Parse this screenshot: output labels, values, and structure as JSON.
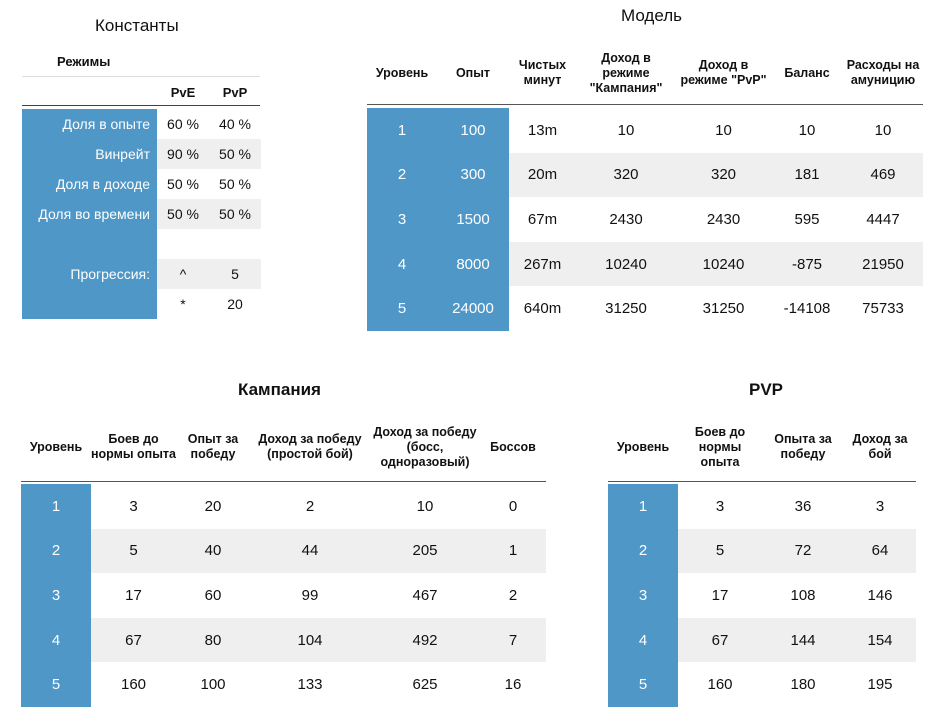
{
  "constants": {
    "title": "Константы",
    "modes_title": "Режимы",
    "columns": [
      "PvE",
      "PvP"
    ],
    "rows": [
      {
        "label": "Доля в опыте",
        "pve": "60 %",
        "pvp": "40 %"
      },
      {
        "label": "Винрейт",
        "pve": "90 %",
        "pvp": "50 %"
      },
      {
        "label": "Доля в доходе",
        "pve": "50 %",
        "pvp": "50 %"
      },
      {
        "label": "Доля во времени",
        "pve": "50 %",
        "pvp": "50 %"
      }
    ],
    "progression_label": "Прогрессия:",
    "progression": [
      {
        "op": "^",
        "value": "5"
      },
      {
        "op": "*",
        "value": "20"
      }
    ]
  },
  "model": {
    "title": "Модель",
    "headers": [
      "Уровень",
      "Опыт",
      "Чистых минут",
      "Доход в режиме \"Кампания\"",
      "Доход в режиме \"PvP\"",
      "Баланс",
      "Расходы на амуницию"
    ],
    "rows": [
      [
        "1",
        "100",
        "13m",
        "10",
        "10",
        "10",
        "10"
      ],
      [
        "2",
        "300",
        "20m",
        "320",
        "320",
        "181",
        "469"
      ],
      [
        "3",
        "1500",
        "67m",
        "2430",
        "2430",
        "595",
        "4447"
      ],
      [
        "4",
        "8000",
        "267m",
        "10240",
        "10240",
        "-875",
        "21950"
      ],
      [
        "5",
        "24000",
        "640m",
        "31250",
        "31250",
        "-14108",
        "75733"
      ]
    ]
  },
  "campaign": {
    "title": "Кампания",
    "headers": [
      "Уровень",
      "Боев до нормы опыта",
      "Опыт за победу",
      "Доход за победу (простой бой)",
      "Доход за победу (босс, одноразовый)",
      "Боссов"
    ],
    "rows": [
      [
        "1",
        "3",
        "20",
        "2",
        "10",
        "0"
      ],
      [
        "2",
        "5",
        "40",
        "44",
        "205",
        "1"
      ],
      [
        "3",
        "17",
        "60",
        "99",
        "467",
        "2"
      ],
      [
        "4",
        "67",
        "80",
        "104",
        "492",
        "7"
      ],
      [
        "5",
        "160",
        "100",
        "133",
        "625",
        "16"
      ]
    ]
  },
  "pvp": {
    "title": "PVP",
    "headers": [
      "Уровень",
      "Боев до нормы опыта",
      "Опыта за победу",
      "Доход за бой"
    ],
    "rows": [
      [
        "1",
        "3",
        "36",
        "3"
      ],
      [
        "2",
        "5",
        "72",
        "64"
      ],
      [
        "3",
        "17",
        "108",
        "146"
      ],
      [
        "4",
        "67",
        "144",
        "154"
      ],
      [
        "5",
        "160",
        "180",
        "195"
      ]
    ]
  }
}
